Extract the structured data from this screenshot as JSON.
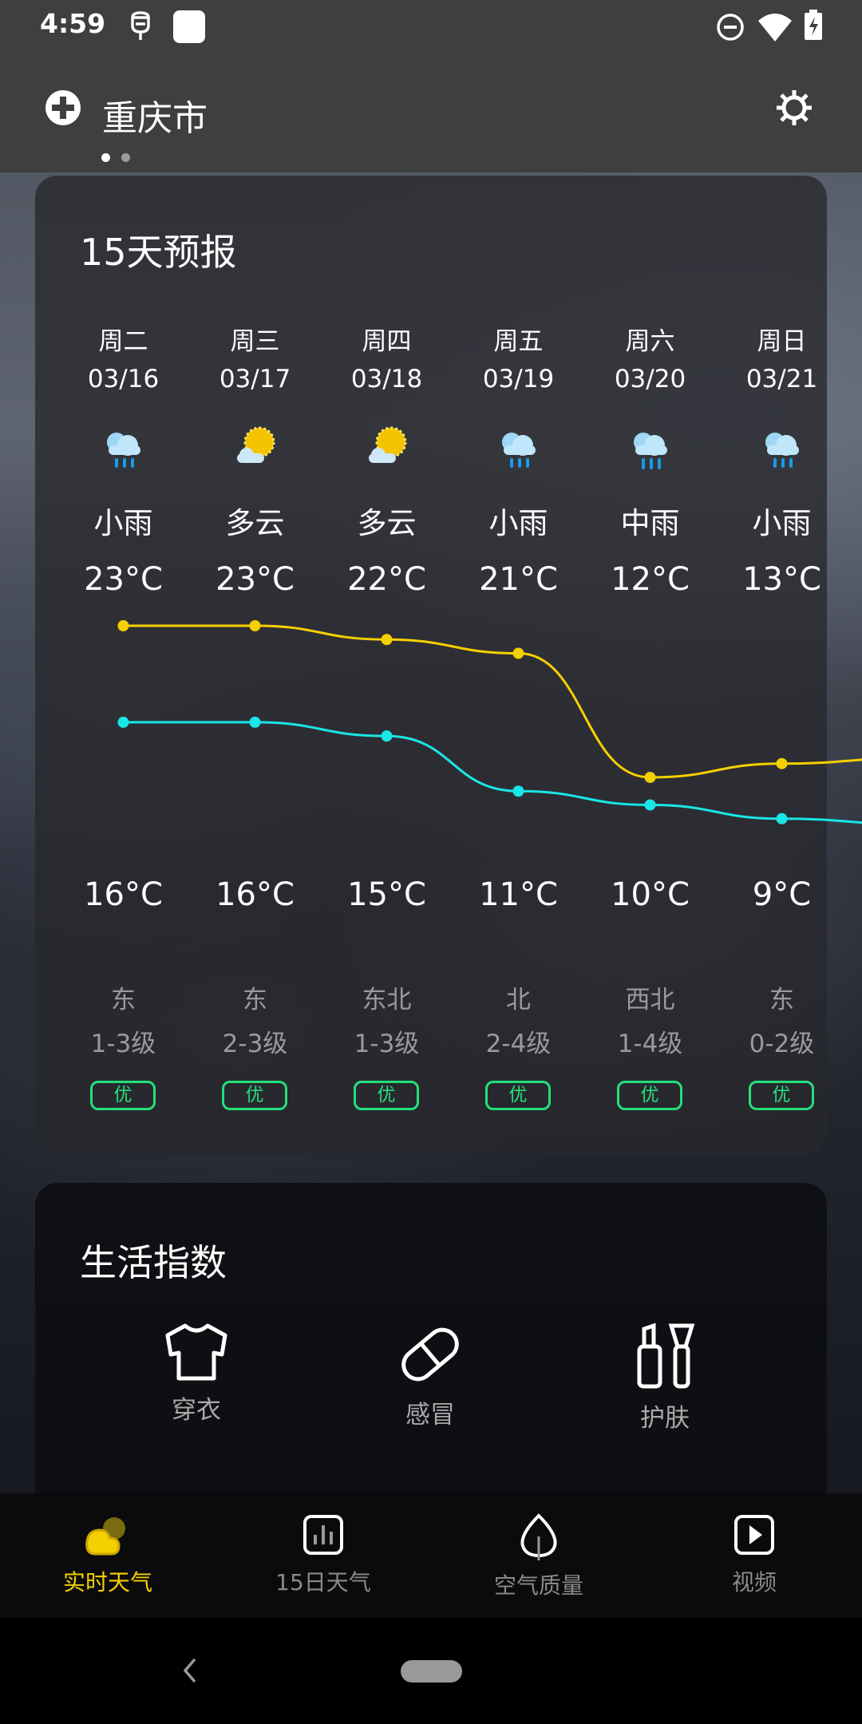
{
  "status_bar": {
    "time": "4:59"
  },
  "header": {
    "city": "重庆市",
    "pages": 2,
    "active_page": 0
  },
  "forecast": {
    "title": "15天预报",
    "days": [
      {
        "day": "周二",
        "date": "03/16",
        "icon": "light-rain-icon",
        "weather": "小雨",
        "high": "23°C",
        "low": "16°C",
        "high_value": 23,
        "low_value": 16,
        "wind_dir": "东",
        "wind_level": "1-3级",
        "aqi": "优"
      },
      {
        "day": "周三",
        "date": "03/17",
        "icon": "partly-cloudy-icon",
        "weather": "多云",
        "high": "23°C",
        "low": "16°C",
        "high_value": 23,
        "low_value": 16,
        "wind_dir": "东",
        "wind_level": "2-3级",
        "aqi": "优"
      },
      {
        "day": "周四",
        "date": "03/18",
        "icon": "partly-cloudy-icon",
        "weather": "多云",
        "high": "22°C",
        "low": "15°C",
        "high_value": 22,
        "low_value": 15,
        "wind_dir": "东北",
        "wind_level": "1-3级",
        "aqi": "优"
      },
      {
        "day": "周五",
        "date": "03/19",
        "icon": "light-rain-icon",
        "weather": "小雨",
        "high": "21°C",
        "low": "11°C",
        "high_value": 21,
        "low_value": 11,
        "wind_dir": "北",
        "wind_level": "2-4级",
        "aqi": "优"
      },
      {
        "day": "周六",
        "date": "03/20",
        "icon": "moderate-rain-icon",
        "weather": "中雨",
        "high": "12°C",
        "low": "10°C",
        "high_value": 12,
        "low_value": 10,
        "wind_dir": "西北",
        "wind_level": "1-4级",
        "aqi": "优"
      },
      {
        "day": "周日",
        "date": "03/21",
        "icon": "light-rain-icon",
        "weather": "小雨",
        "high": "13°C",
        "low": "9°C",
        "high_value": 13,
        "low_value": 9,
        "wind_dir": "东",
        "wind_level": "0-2级",
        "aqi": "优"
      }
    ],
    "colors": {
      "high_line": "#f5d000",
      "low_line": "#19e6e6",
      "aqi_good": "#22e07a"
    }
  },
  "life_index": {
    "title": "生活指数",
    "items": [
      {
        "label": "穿衣",
        "icon": "shirt-icon"
      },
      {
        "label": "感冒",
        "icon": "pill-icon"
      },
      {
        "label": "护肤",
        "icon": "skincare-icon"
      }
    ]
  },
  "bottom_nav": {
    "active": 0,
    "active_color": "#f5d000",
    "items": [
      {
        "label": "实时天气",
        "icon": "weather-icon"
      },
      {
        "label": "15日天气",
        "icon": "chart-icon"
      },
      {
        "label": "空气质量",
        "icon": "leaf-icon"
      },
      {
        "label": "视频",
        "icon": "video-icon"
      }
    ]
  }
}
